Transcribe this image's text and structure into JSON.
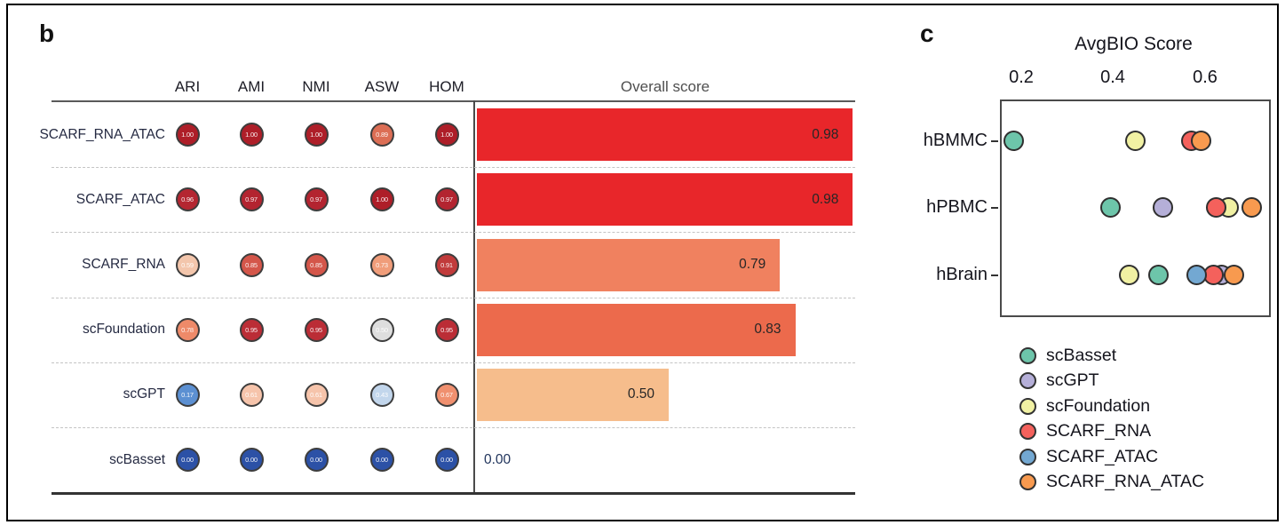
{
  "panel_b": {
    "label": "b",
    "metric_headers": [
      "ARI",
      "AMI",
      "NMI",
      "ASW",
      "HOM"
    ],
    "overall_header": "Overall score",
    "rows": [
      {
        "label": "SCARF_RNA_ATAC",
        "cells": [
          {
            "value": "1.00",
            "color": "#ae1e28"
          },
          {
            "value": "1.00",
            "color": "#ae1e28"
          },
          {
            "value": "1.00",
            "color": "#ae1e28"
          },
          {
            "value": "0.89",
            "color": "#dc6e55"
          },
          {
            "value": "1.00",
            "color": "#ae1e28"
          }
        ],
        "overall": {
          "value": "0.98",
          "bar": 0.98,
          "bar_color": "#e8262a",
          "label_color": "#262626"
        }
      },
      {
        "label": "SCARF_ATAC",
        "cells": [
          {
            "value": "0.96",
            "color": "#b42631"
          },
          {
            "value": "0.97",
            "color": "#b32430"
          },
          {
            "value": "0.97",
            "color": "#b32430"
          },
          {
            "value": "1.00",
            "color": "#ae1e28"
          },
          {
            "value": "0.97",
            "color": "#b32430"
          }
        ],
        "overall": {
          "value": "0.98",
          "bar": 0.98,
          "bar_color": "#e8262a",
          "label_color": "#262626"
        }
      },
      {
        "label": "SCARF_RNA",
        "cells": [
          {
            "value": "0.59",
            "color": "#f3c6ac"
          },
          {
            "value": "0.85",
            "color": "#d4564a"
          },
          {
            "value": "0.85",
            "color": "#d4564a"
          },
          {
            "value": "0.73",
            "color": "#f09d7a"
          },
          {
            "value": "0.91",
            "color": "#c13b3b"
          }
        ],
        "overall": {
          "value": "0.79",
          "bar": 0.79,
          "bar_color": "#f0815f",
          "label_color": "#262626"
        }
      },
      {
        "label": "scFoundation",
        "cells": [
          {
            "value": "0.78",
            "color": "#ee8a69"
          },
          {
            "value": "0.95",
            "color": "#bb2d36"
          },
          {
            "value": "0.95",
            "color": "#bb2d36"
          },
          {
            "value": "0.50",
            "color": "#dedede"
          },
          {
            "value": "0.95",
            "color": "#bb2d36"
          }
        ],
        "overall": {
          "value": "0.83",
          "bar": 0.83,
          "bar_color": "#ec6a4c",
          "label_color": "#262626"
        }
      },
      {
        "label": "scGPT",
        "cells": [
          {
            "value": "0.17",
            "color": "#5c90d2"
          },
          {
            "value": "0.61",
            "color": "#f6c4ab"
          },
          {
            "value": "0.61",
            "color": "#f6c4ab"
          },
          {
            "value": "0.43",
            "color": "#c2d6ec"
          },
          {
            "value": "0.67",
            "color": "#f0906f"
          }
        ],
        "overall": {
          "value": "0.50",
          "bar": 0.5,
          "bar_color": "#f6bd8c",
          "label_color": "#262626"
        }
      },
      {
        "label": "scBasset",
        "cells": [
          {
            "value": "0.00",
            "color": "#2c51a6"
          },
          {
            "value": "0.00",
            "color": "#2c51a6"
          },
          {
            "value": "0.00",
            "color": "#2c51a6"
          },
          {
            "value": "0.00",
            "color": "#2c51a6"
          },
          {
            "value": "0.00",
            "color": "#2c51a6"
          }
        ],
        "overall": {
          "value": "0.00",
          "bar": 0.0,
          "bar_color": "",
          "label_color": "#20345c"
        }
      }
    ]
  },
  "panel_c": {
    "label": "c",
    "title": "AvgBIO Score",
    "x_ticks": [
      "0.2",
      "0.4",
      "0.6"
    ],
    "rows": [
      {
        "label": "hBMMC",
        "points": [
          {
            "series": "scBasset",
            "x": 0.18
          },
          {
            "series": "scFoundation",
            "x": 0.445
          },
          {
            "series": "SCARF_RNA",
            "x": 0.567
          },
          {
            "series": "SCARF_RNA_ATAC",
            "x": 0.588
          }
        ]
      },
      {
        "label": "hPBMC",
        "points": [
          {
            "series": "scBasset",
            "x": 0.39
          },
          {
            "series": "scGPT",
            "x": 0.505
          },
          {
            "series": "scFoundation",
            "x": 0.648
          },
          {
            "series": "SCARF_RNA",
            "x": 0.62
          },
          {
            "series": "SCARF_RNA_ATAC",
            "x": 0.698
          }
        ]
      },
      {
        "label": "hBrain",
        "points": [
          {
            "series": "scFoundation",
            "x": 0.43
          },
          {
            "series": "scBasset",
            "x": 0.495
          },
          {
            "series": "scGPT",
            "x": 0.632
          },
          {
            "series": "SCARF_RNA",
            "x": 0.615
          },
          {
            "series": "SCARF_ATAC",
            "x": 0.578
          },
          {
            "series": "SCARF_RNA_ATAC",
            "x": 0.658
          }
        ]
      }
    ],
    "legend": [
      {
        "name": "scBasset",
        "color": "#6dc5aa"
      },
      {
        "name": "scGPT",
        "color": "#b5afd8"
      },
      {
        "name": "scFoundation",
        "color": "#f1f1a3"
      },
      {
        "name": "SCARF_RNA",
        "color": "#f4615c"
      },
      {
        "name": "SCARF_ATAC",
        "color": "#73a8d2"
      },
      {
        "name": "SCARF_RNA_ATAC",
        "color": "#f89a4f"
      }
    ]
  },
  "chart_data": [
    {
      "type": "bar",
      "title": "Overall score",
      "orientation": "horizontal",
      "categories": [
        "SCARF_RNA_ATAC",
        "SCARF_ATAC",
        "SCARF_RNA",
        "scFoundation",
        "scGPT",
        "scBasset"
      ],
      "values": [
        0.98,
        0.98,
        0.79,
        0.83,
        0.5,
        0.0
      ],
      "xlim": [
        0,
        1
      ],
      "grid": "dashed-row-separators",
      "metric_columns": [
        "ARI",
        "AMI",
        "NMI",
        "ASW",
        "HOM"
      ],
      "metric_values": [
        [
          1.0,
          1.0,
          1.0,
          0.89,
          1.0
        ],
        [
          0.96,
          0.97,
          0.97,
          1.0,
          0.97
        ],
        [
          0.59,
          0.85,
          0.85,
          0.73,
          0.91
        ],
        [
          0.78,
          0.95,
          0.95,
          0.5,
          0.95
        ],
        [
          0.17,
          0.61,
          0.61,
          0.43,
          0.67
        ],
        [
          0.0,
          0.0,
          0.0,
          0.0,
          0.0
        ]
      ]
    },
    {
      "type": "scatter",
      "title": "AvgBIO Score",
      "categories": [
        "hBMMC",
        "hPBMC",
        "hBrain"
      ],
      "x_ticks": [
        0.2,
        0.4,
        0.6
      ],
      "xlim": [
        0.152,
        0.736
      ],
      "legend_position": "below",
      "series": [
        {
          "name": "scBasset",
          "x": [
            0.18,
            0.39,
            0.5
          ]
        },
        {
          "name": "scGPT",
          "x": [
            null,
            0.51,
            0.63
          ]
        },
        {
          "name": "scFoundation",
          "x": [
            0.45,
            0.65,
            0.43
          ]
        },
        {
          "name": "SCARF_RNA",
          "x": [
            0.57,
            0.62,
            0.62
          ]
        },
        {
          "name": "SCARF_ATAC",
          "x": [
            null,
            null,
            0.58
          ]
        },
        {
          "name": "SCARF_RNA_ATAC",
          "x": [
            0.59,
            0.7,
            0.66
          ]
        }
      ]
    }
  ]
}
